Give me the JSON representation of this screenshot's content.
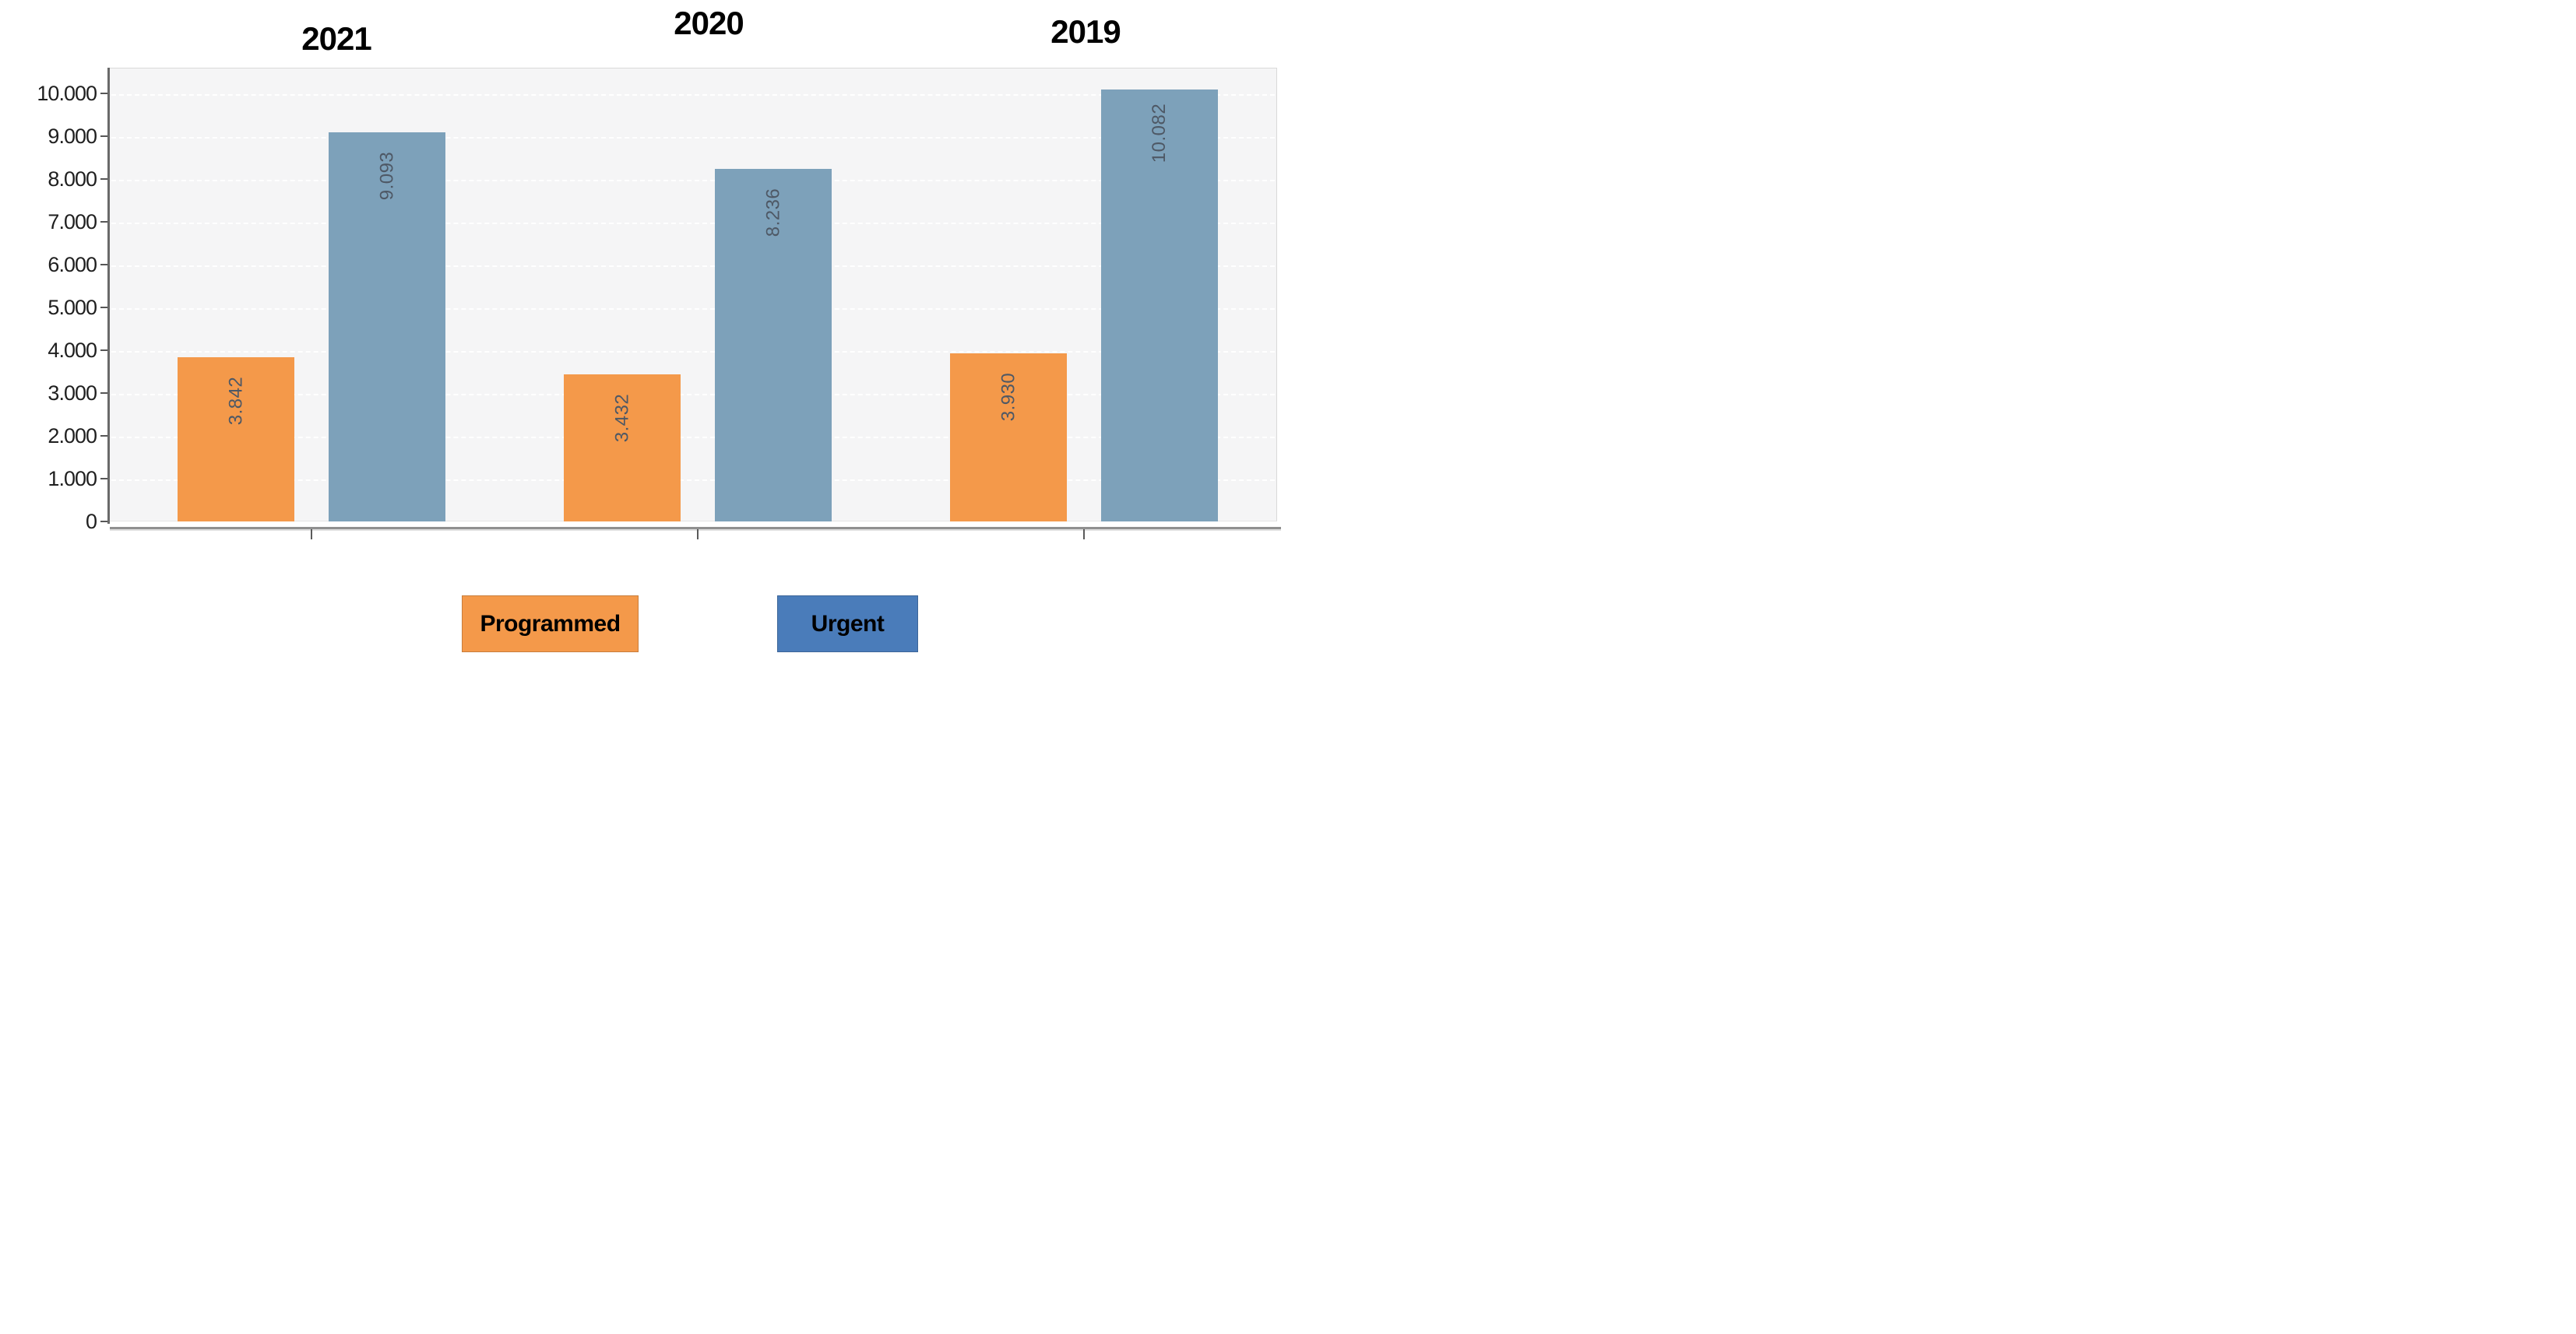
{
  "chart_data": {
    "type": "bar",
    "title": "",
    "xlabel": "",
    "ylabel": "",
    "categories": [
      "2021",
      "2020",
      "2019"
    ],
    "series": [
      {
        "name": "Programmed",
        "color": "#F4994A",
        "values": [
          3842,
          3432,
          3930
        ],
        "labels": [
          "3.842",
          "3.432",
          "3.930"
        ]
      },
      {
        "name": "Urgent",
        "color": "#7DA1BA",
        "values": [
          9093,
          8236,
          10082
        ],
        "labels": [
          "9.093",
          "8.236",
          "10.082"
        ]
      }
    ],
    "ylim": [
      0,
      10600
    ],
    "ytick_step": 1000,
    "ytick_labels": [
      "0",
      "1.000",
      "2.000",
      "3.000",
      "4.000",
      "5.000",
      "6.000",
      "7.000",
      "8.000",
      "9.000",
      "10.000"
    ],
    "grid": "horizontal white dashed lines on light gray plot background",
    "legend_position": "bottom",
    "value_label_rotation": -90
  },
  "legend": {
    "items": [
      {
        "label": "Programmed",
        "color": "#F4994A"
      },
      {
        "label": "Urgent",
        "color": "#4A7CBA"
      }
    ]
  },
  "colors": {
    "page_bg": "#FFFFFF",
    "plot_bg": "#F5F5F6",
    "plot_border": "#D9D9D9",
    "gridline": "#FFFFFF",
    "y_axis_line": "#6A6A6A",
    "x_axis_line": "#8F8F8F",
    "tick": "#565656",
    "tick_label": "#1F1F1F",
    "value_label": "#4E5865",
    "year_title": "#000000",
    "bar_orange": "#F4994A",
    "bar_blue": "#7DA1BA",
    "legend_blue": "#4A7CBA"
  }
}
